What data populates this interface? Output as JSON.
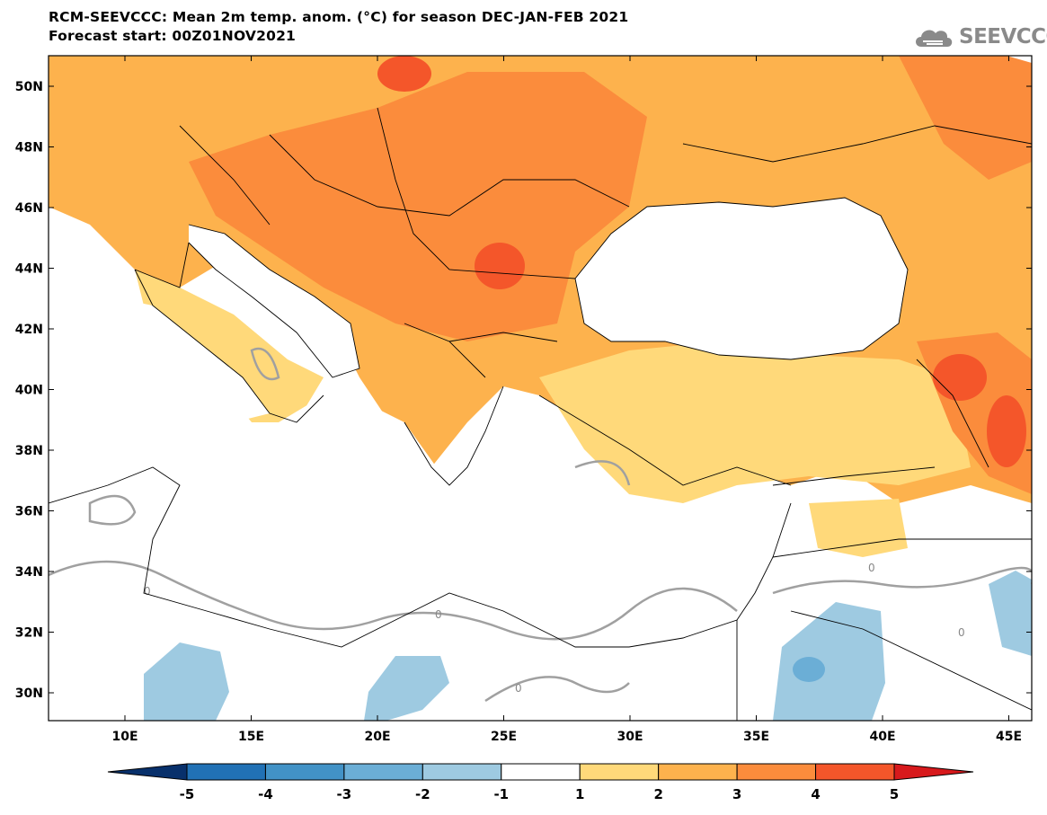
{
  "header": {
    "title_line1": "RCM-SEEVCCC: Mean 2m temp. anom. (°C) for season DEC-JAN-FEB 2021",
    "title_line2": "Forecast start: 00Z01NOV2021"
  },
  "logo": {
    "text": "SEEVCCC",
    "icon": "cloud-icon"
  },
  "map": {
    "lat_labels": [
      "50N",
      "48N",
      "46N",
      "44N",
      "42N",
      "40N",
      "38N",
      "36N",
      "34N",
      "32N",
      "30N"
    ],
    "lon_labels": [
      "10E",
      "15E",
      "20E",
      "25E",
      "30E",
      "35E",
      "40E",
      "45E"
    ],
    "contour_zero_label": "0"
  },
  "colorbar": {
    "labels": [
      "-5",
      "-4",
      "-3",
      "-2",
      "-1",
      "1",
      "2",
      "3",
      "4",
      "5"
    ],
    "colors": [
      "#08306b",
      "#2171b5",
      "#4292c6",
      "#6baed6",
      "#9ecae1",
      "#ffffff",
      "#ffd97a",
      "#fdb24d",
      "#fb8c3c",
      "#f4562a",
      "#d7191c"
    ]
  }
}
